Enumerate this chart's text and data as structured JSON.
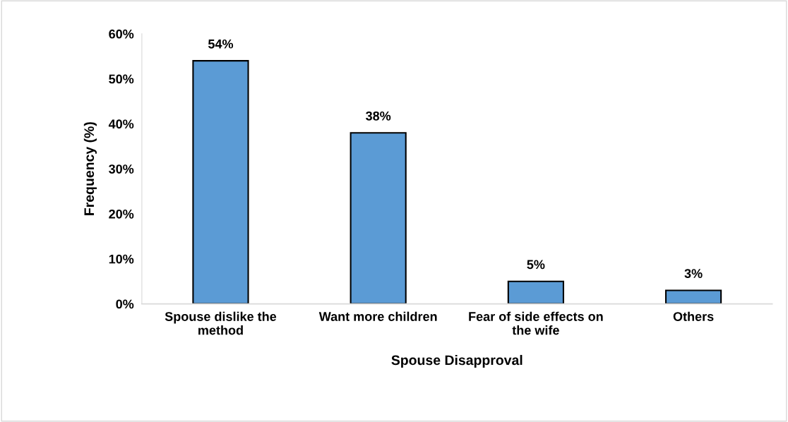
{
  "chart_data": {
    "type": "bar",
    "xlabel": "Spouse Disapproval",
    "ylabel": "Frequency (%)",
    "categories": [
      "Spouse dislike the\nmethod",
      "Want more children",
      "Fear of side effects on\nthe wife",
      "Others"
    ],
    "values": [
      54,
      38,
      5,
      3
    ],
    "color": "#5b9bd5",
    "value_labels": [
      "54%",
      "38%",
      "5%",
      "3%"
    ],
    "ylim": [
      0,
      60
    ],
    "yticks": [
      {
        "value": 0,
        "label": "0%"
      },
      {
        "value": 10,
        "label": "10%"
      },
      {
        "value": 20,
        "label": "20%"
      },
      {
        "value": 30,
        "label": "30%"
      },
      {
        "value": 40,
        "label": "40%"
      },
      {
        "value": 50,
        "label": "50%"
      },
      {
        "value": 60,
        "label": "60%"
      }
    ],
    "grid": false,
    "legend": false
  }
}
